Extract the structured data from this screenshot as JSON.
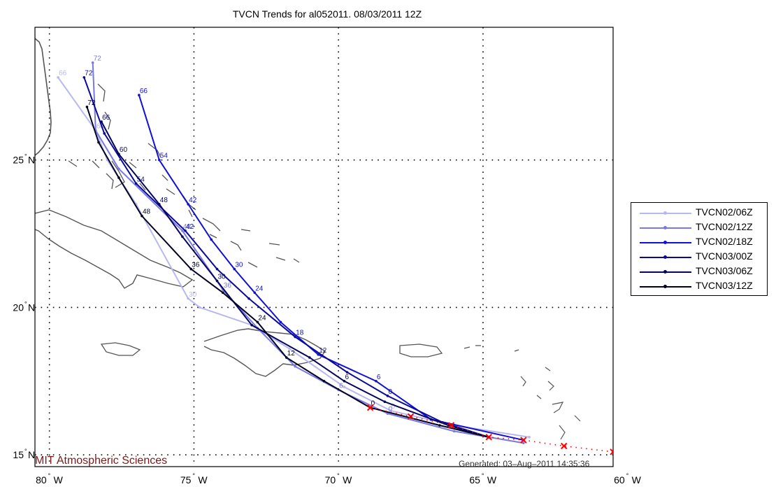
{
  "title": "TVCN Trends for al052011. 08/03/2011 12Z",
  "footer": {
    "institution": "MIT Atmospheric Sciences",
    "generated": "Generated: 03–Aug–2011 14:35:36"
  },
  "map": {
    "lon_range": [
      -80.5,
      -60.5
    ],
    "lat_range": [
      14.6,
      29.5
    ],
    "lon_ticks": [
      {
        "value": -80,
        "label": "80",
        "suffix": "W"
      },
      {
        "value": -75,
        "label": "75",
        "suffix": "W"
      },
      {
        "value": -70,
        "label": "70",
        "suffix": "W"
      },
      {
        "value": -65,
        "label": "65",
        "suffix": "W"
      },
      {
        "value": -60,
        "label": "60",
        "suffix": "W"
      }
    ],
    "lat_ticks": [
      {
        "value": 15,
        "label": "15",
        "suffix": "N"
      },
      {
        "value": 20,
        "label": "20",
        "suffix": "N"
      },
      {
        "value": 25,
        "label": "25",
        "suffix": "N"
      }
    ],
    "grid": "dotted",
    "colors": {
      "land_outline": "#555555",
      "grid": "#000000",
      "observed": "#ff0000"
    }
  },
  "observed_track": {
    "marker": "x",
    "points": [
      [
        -60.5,
        15.1
      ],
      [
        -62.2,
        15.3
      ],
      [
        -63.6,
        15.5
      ],
      [
        -64.8,
        15.6
      ],
      [
        -66.1,
        16.0
      ],
      [
        -67.5,
        16.3
      ],
      [
        -68.9,
        16.6
      ]
    ]
  },
  "chart_data": {
    "type": "line",
    "xlabel": "",
    "ylabel": "",
    "x_units": "degrees longitude",
    "y_units": "degrees latitude",
    "xlim": [
      -80.5,
      -60.5
    ],
    "ylim": [
      14.6,
      29.5
    ],
    "legend_position": "right",
    "series": [
      {
        "name": "TVCN02/06Z",
        "color": "#b8b8f0",
        "points": [
          [
            -63.4,
            15.6,
            ""
          ],
          [
            -66.0,
            16.0,
            ""
          ],
          [
            -68.2,
            16.5,
            "0"
          ],
          [
            -69.8,
            17.3,
            ""
          ],
          [
            -71.7,
            18.6,
            ""
          ],
          [
            -73.0,
            19.4,
            ""
          ],
          [
            -74.8,
            20.0,
            ""
          ],
          [
            -75.2,
            20.3,
            "30"
          ],
          [
            -77.0,
            23.5,
            ""
          ],
          [
            -78.0,
            25.0,
            ""
          ],
          [
            -78.4,
            26.0,
            "60"
          ],
          [
            -79.7,
            27.8,
            "66"
          ]
        ],
        "labels_color": "#b8b8f0"
      },
      {
        "name": "TVCN02/12Z",
        "color": "#7878e6",
        "points": [
          [
            -63.6,
            15.4,
            ""
          ],
          [
            -66.0,
            15.8,
            ""
          ],
          [
            -68.3,
            16.4,
            "0"
          ],
          [
            -70.0,
            17.2,
            "6"
          ],
          [
            -71.5,
            18.0,
            ""
          ],
          [
            -72.8,
            19.3,
            ""
          ],
          [
            -74.0,
            20.6,
            "36"
          ],
          [
            -75.4,
            22.6,
            "48"
          ],
          [
            -77.6,
            24.7,
            ""
          ],
          [
            -78.4,
            26.0,
            ""
          ],
          [
            -78.5,
            28.3,
            "72"
          ]
        ],
        "labels_color": "#7878e6"
      },
      {
        "name": "TVCN02/18Z",
        "color": "#1010d8",
        "points": [
          [
            -63.6,
            15.5,
            ""
          ],
          [
            -66.8,
            16.2,
            ""
          ],
          [
            -68.7,
            17.5,
            "6"
          ],
          [
            -70.7,
            18.4,
            "12"
          ],
          [
            -72.0,
            19.5,
            ""
          ],
          [
            -72.9,
            20.5,
            "24"
          ],
          [
            -73.6,
            21.3,
            "30"
          ],
          [
            -74.4,
            22.3,
            ""
          ],
          [
            -75.2,
            23.5,
            "42"
          ],
          [
            -76.2,
            25.0,
            "54"
          ],
          [
            -76.9,
            27.2,
            "66"
          ]
        ],
        "labels_color": "#1010d8"
      },
      {
        "name": "TVCN03/00Z",
        "color": "#0a0a9a",
        "points": [
          [
            -64.8,
            15.6,
            ""
          ],
          [
            -66.4,
            16.1,
            ""
          ],
          [
            -68.3,
            17.0,
            "0"
          ],
          [
            -69.7,
            17.8,
            ""
          ],
          [
            -71.5,
            19.0,
            "18"
          ],
          [
            -73.1,
            20.3,
            ""
          ],
          [
            -74.2,
            21.3,
            ""
          ],
          [
            -75.3,
            22.6,
            "42"
          ],
          [
            -77.0,
            24.2,
            "54"
          ],
          [
            -78.1,
            25.9,
            ""
          ],
          [
            -78.8,
            27.8,
            "72"
          ]
        ],
        "labels_color": "#0a0a9a"
      },
      {
        "name": "TVCN03/06Z",
        "color": "#050560",
        "points": [
          [
            -64.8,
            15.6,
            ""
          ],
          [
            -66.2,
            16.0,
            ""
          ],
          [
            -68.4,
            16.8,
            ""
          ],
          [
            -69.8,
            17.5,
            "6"
          ],
          [
            -71.0,
            18.3,
            ""
          ],
          [
            -73.0,
            19.4,
            ""
          ],
          [
            -74.2,
            20.9,
            "30"
          ],
          [
            -75.4,
            22.4,
            ""
          ],
          [
            -76.2,
            23.5,
            "48"
          ],
          [
            -77.6,
            25.2,
            "60"
          ],
          [
            -78.2,
            26.3,
            "66"
          ]
        ],
        "labels_color": "#050560"
      },
      {
        "name": "TVCN03/12Z",
        "color": "#000020",
        "points": [
          [
            -64.8,
            15.6,
            ""
          ],
          [
            -66.5,
            16.0,
            ""
          ],
          [
            -68.9,
            16.6,
            "0"
          ],
          [
            -70.5,
            17.5,
            ""
          ],
          [
            -71.8,
            18.3,
            "12"
          ],
          [
            -72.8,
            19.5,
            "24"
          ],
          [
            -74.0,
            20.5,
            ""
          ],
          [
            -75.1,
            21.3,
            "36"
          ],
          [
            -76.8,
            23.1,
            "48"
          ],
          [
            -77.6,
            24.4,
            ""
          ],
          [
            -78.3,
            25.6,
            ""
          ],
          [
            -78.7,
            26.8,
            "72"
          ]
        ],
        "labels_color": "#000020"
      }
    ]
  }
}
